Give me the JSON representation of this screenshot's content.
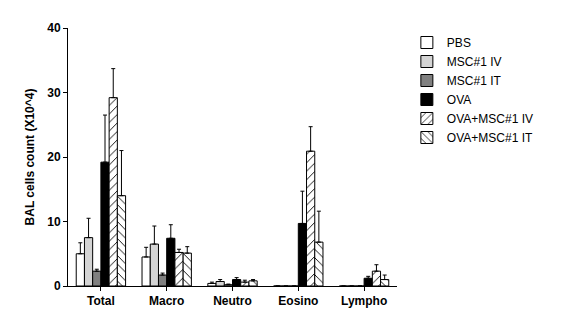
{
  "chart_data": {
    "type": "bar",
    "y_label": "BAL cells count (X10^4)",
    "categories": [
      "Total",
      "Macro",
      "Neutro",
      "Eosino",
      "Lympho"
    ],
    "series": [
      {
        "name": "PBS",
        "color": "#ffffff",
        "values": [
          5.0,
          4.5,
          0.4,
          0,
          0
        ],
        "errors": [
          1.7,
          1.5,
          0.2,
          0,
          0
        ]
      },
      {
        "name": "MSC#1 IV",
        "color": "#d4d4d4",
        "values": [
          7.5,
          6.5,
          0.7,
          0,
          0
        ],
        "errors": [
          3.0,
          2.8,
          0.3,
          0,
          0
        ]
      },
      {
        "name": "MSC#1 IT",
        "color": "#808080",
        "values": [
          2.3,
          1.7,
          0.2,
          0,
          0
        ],
        "errors": [
          0.3,
          0.3,
          0.1,
          0,
          0
        ]
      },
      {
        "name": "OVA",
        "color": "#000000",
        "values": [
          19.2,
          7.4,
          1.0,
          9.7,
          1.2
        ],
        "errors": [
          7.3,
          2.1,
          0.3,
          5.0,
          0.3
        ]
      },
      {
        "name": "OVA+MSC#1 IV",
        "color": "#ffffff",
        "marker": "hatch-forward",
        "values": [
          29.2,
          5.2,
          0.6,
          20.9,
          2.3
        ],
        "errors": [
          4.5,
          0.5,
          0.3,
          3.8,
          1.0
        ]
      },
      {
        "name": "OVA+MSC#1 IT",
        "color": "#ffffff",
        "marker": "hatch-back",
        "values": [
          14.0,
          5.1,
          0.8,
          6.8,
          1.0
        ],
        "errors": [
          7.0,
          1.0,
          0.2,
          4.8,
          0.7
        ]
      }
    ],
    "ylim": [
      0,
      40
    ],
    "yticks": [
      0,
      10,
      20,
      30,
      40
    ],
    "grid": false,
    "legend": "right"
  }
}
